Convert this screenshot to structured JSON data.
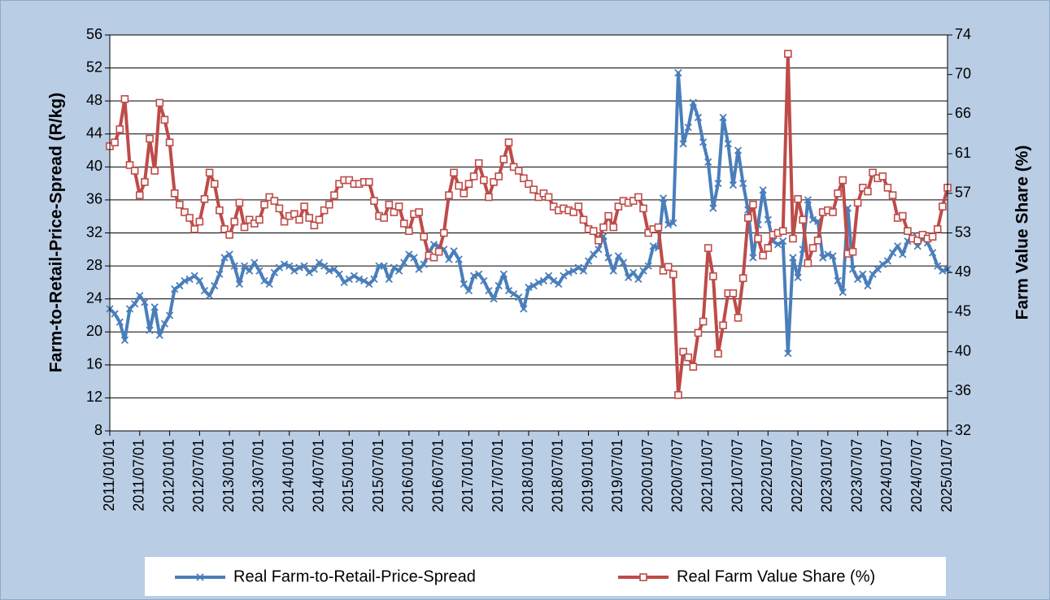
{
  "chart_data": {
    "type": "line",
    "y_label": "Farm-to-Retail-Price-Spread (R/kg)",
    "y2_label": "Farm Value Share (%)",
    "categories": [
      "2011/01/01",
      null,
      null,
      null,
      null,
      null,
      "2011/07/01",
      null,
      null,
      null,
      null,
      null,
      "2012/01/01",
      null,
      null,
      null,
      null,
      null,
      "2012/07/01",
      null,
      null,
      null,
      null,
      null,
      "2013/01/01",
      null,
      null,
      null,
      null,
      null,
      "2013/07/01",
      null,
      null,
      null,
      null,
      null,
      "2014/01/01",
      null,
      null,
      null,
      null,
      null,
      "2014/07/01",
      null,
      null,
      null,
      null,
      null,
      "2015/01/01",
      null,
      null,
      null,
      null,
      null,
      "2015/07/01",
      null,
      null,
      null,
      null,
      null,
      "2016/01/01",
      null,
      null,
      null,
      null,
      null,
      "2016/07/01",
      null,
      null,
      null,
      null,
      null,
      "2017/01/01",
      null,
      null,
      null,
      null,
      null,
      "2017/07/01",
      null,
      null,
      null,
      null,
      null,
      "2018/01/01",
      null,
      null,
      null,
      null,
      null,
      "2018/07/01",
      null,
      null,
      null,
      null,
      null,
      "2019/01/01",
      null,
      null,
      null,
      null,
      null,
      "2019/07/01",
      null,
      null,
      null,
      null,
      null,
      "2020/01/07",
      null,
      null,
      null,
      null,
      null,
      "2020/07/07",
      null,
      null,
      null,
      null,
      null,
      "2021/01/07",
      null,
      null,
      null,
      null,
      null,
      "2021/07/07",
      null,
      null,
      null,
      null,
      null,
      "2022/01/07",
      null,
      null,
      null,
      null,
      null,
      "2022/07/07",
      null,
      null,
      null,
      null,
      null,
      "2023/01/07",
      null,
      null,
      null,
      null,
      null,
      "2023/07/07",
      null,
      null,
      null,
      null,
      null,
      "2024/01/07",
      null,
      null,
      null,
      null,
      null,
      "2024/07/07",
      null,
      null,
      null,
      null,
      null,
      "2025/01/07"
    ],
    "series": [
      {
        "name": "Real Farm-to-Retail-Price-Spread",
        "color": "#4a7ebb",
        "marker": "x",
        "values": [
          22.8,
          22.2,
          21.2,
          19.0,
          22.8,
          23.4,
          24.4,
          23.6,
          20.2,
          23.0,
          19.6,
          21.0,
          22.0,
          25.2,
          25.6,
          26.2,
          26.4,
          26.8,
          26.2,
          25.0,
          24.4,
          25.6,
          27.0,
          29.0,
          29.4,
          28.0,
          25.8,
          28.0,
          27.4,
          28.4,
          27.4,
          26.2,
          25.8,
          27.2,
          27.8,
          28.2,
          28.0,
          27.4,
          27.8,
          28.0,
          27.2,
          27.6,
          28.4,
          28.0,
          27.4,
          27.6,
          27.0,
          26.0,
          26.4,
          26.8,
          26.4,
          26.2,
          25.8,
          26.4,
          28.0,
          28.0,
          26.4,
          27.8,
          27.4,
          28.4,
          29.4,
          29.0,
          27.6,
          28.2,
          29.6,
          30.6,
          30.4,
          30.0,
          28.8,
          29.8,
          28.8,
          25.8,
          25.0,
          26.8,
          27.0,
          26.2,
          25.0,
          24.0,
          25.6,
          27.0,
          25.0,
          24.6,
          24.2,
          22.8,
          25.4,
          25.6,
          26.0,
          26.2,
          26.8,
          26.2,
          25.8,
          26.8,
          27.2,
          27.4,
          27.8,
          27.4,
          28.6,
          29.4,
          30.0,
          31.6,
          29.0,
          27.4,
          29.2,
          28.4,
          26.6,
          27.2,
          26.4,
          27.4,
          28.0,
          30.4,
          30.2,
          36.2,
          33.0,
          33.2,
          51.4,
          42.8,
          44.8,
          47.8,
          46.0,
          43.0,
          40.6,
          35.0,
          38.0,
          46.0,
          42.8,
          37.8,
          42.0,
          38.0,
          34.8,
          29.0,
          33.0,
          37.2,
          33.6,
          31.0,
          30.6,
          31.0,
          17.4,
          29.0,
          26.6,
          30.0,
          36.0,
          33.6,
          33.4,
          29.0,
          29.4,
          29.2,
          26.2,
          24.8,
          35.0,
          27.6,
          26.4,
          27.0,
          25.6,
          27.0,
          27.6,
          28.2,
          28.6,
          29.6,
          30.4,
          29.4,
          31.0,
          31.6,
          30.4,
          31.4,
          30.8,
          29.6,
          28.0,
          27.4,
          27.6
        ]
      },
      {
        "name": "Real Farm Value Share (%)",
        "color": "#be4b48",
        "marker": "square",
        "axis": "y2",
        "values": [
          62.2,
          62.6,
          64.0,
          67.2,
          60.2,
          59.6,
          57.0,
          58.4,
          63.0,
          59.6,
          66.8,
          65.0,
          62.6,
          57.2,
          56.0,
          55.2,
          54.6,
          53.4,
          54.2,
          56.6,
          59.4,
          58.2,
          55.4,
          53.4,
          52.8,
          54.2,
          56.2,
          53.6,
          54.4,
          54.0,
          54.4,
          56.0,
          56.8,
          56.4,
          55.6,
          54.2,
          54.8,
          55.0,
          54.4,
          55.8,
          54.6,
          53.8,
          54.4,
          55.4,
          56.0,
          57.0,
          58.2,
          58.6,
          58.6,
          58.2,
          58.2,
          58.4,
          58.4,
          56.4,
          54.8,
          54.6,
          56.0,
          55.2,
          55.8,
          54.0,
          53.2,
          55.0,
          55.2,
          52.6,
          50.6,
          50.4,
          51.0,
          53.0,
          57.0,
          59.4,
          58.0,
          57.2,
          58.2,
          59.0,
          60.4,
          58.6,
          56.8,
          58.4,
          59.0,
          60.8,
          62.6,
          60.0,
          59.6,
          58.8,
          58.2,
          57.6,
          56.8,
          57.2,
          56.8,
          55.8,
          55.4,
          55.6,
          55.4,
          55.2,
          55.8,
          54.4,
          53.4,
          53.2,
          52.2,
          53.6,
          54.8,
          53.6,
          55.8,
          56.4,
          56.2,
          56.4,
          56.8,
          55.6,
          53.0,
          53.4,
          53.6,
          49.0,
          49.4,
          48.6,
          35.8,
          40.4,
          39.8,
          38.8,
          42.4,
          43.6,
          51.4,
          48.4,
          40.2,
          43.2,
          46.6,
          46.6,
          44.0,
          48.2,
          54.6,
          56.0,
          52.4,
          50.6,
          51.4,
          52.8,
          53.0,
          53.2,
          72.0,
          52.4,
          56.6,
          54.4,
          49.8,
          51.4,
          52.2,
          55.2,
          55.4,
          55.2,
          57.2,
          58.6,
          50.8,
          51.0,
          56.2,
          57.8,
          57.4,
          59.4,
          58.8,
          59.0,
          57.8,
          57.0,
          54.6,
          54.8,
          53.2,
          52.4,
          52.2,
          52.8,
          52.4,
          52.6,
          53.4,
          55.8,
          57.8
        ]
      }
    ],
    "ylim": [
      8,
      56
    ],
    "yticks": [
      8,
      12,
      16,
      20,
      24,
      28,
      32,
      36,
      40,
      44,
      48,
      52,
      56
    ],
    "y2lim": [
      32,
      74
    ],
    "y2ticks": [
      32,
      {
        "value": 36.2,
        "label": "36"
      },
      {
        "value": 40.4,
        "label": "40"
      },
      {
        "value": 44.6,
        "label": "45"
      },
      {
        "value": 48.8,
        "label": "49"
      },
      53,
      {
        "value": 57.2,
        "label": "57"
      },
      {
        "value": 61.4,
        "label": "61"
      },
      {
        "value": 65.6,
        "label": "66"
      },
      {
        "value": 69.8,
        "label": "70"
      },
      74
    ],
    "grid": true,
    "legend": "bottom"
  }
}
